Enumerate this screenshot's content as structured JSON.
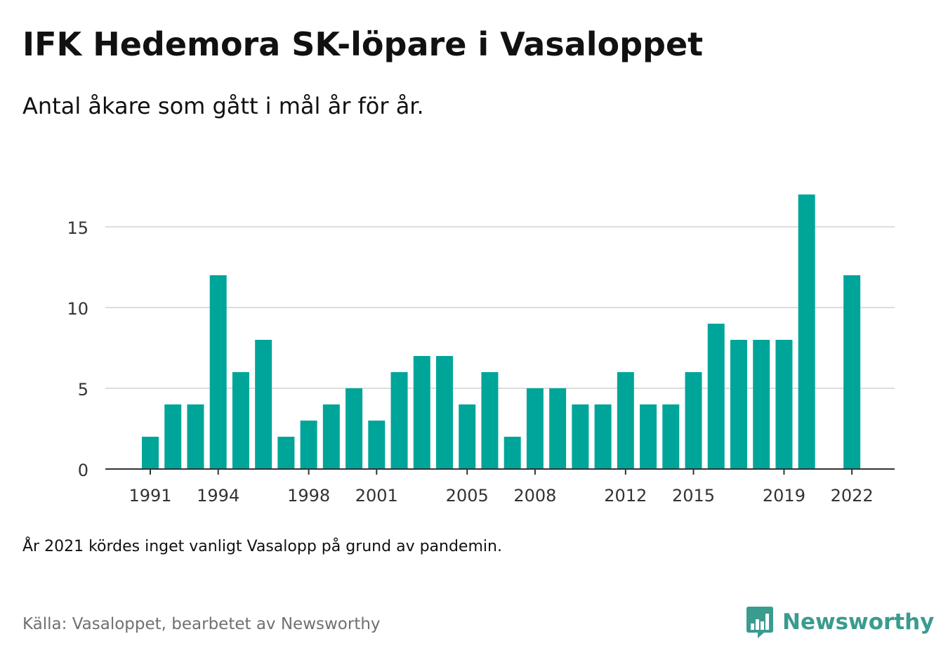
{
  "header": {
    "title": "IFK Hedemora SK-löpare i Vasaloppet",
    "subtitle": "Antal åkare som gått i mål år för år."
  },
  "footer": {
    "note": "År 2021 kördes inget vanligt Vasalopp på grund av pandemin.",
    "source": "Källa: Vasaloppet, bearbetet av Newsworthy",
    "brand": "Newsworthy"
  },
  "colors": {
    "bar": "#00a59a",
    "brand": "#3a9b8f",
    "grid": "#dddddd",
    "axis": "#333333"
  },
  "icons": {
    "brand_logo": "bar-chart-speech-bubble-icon"
  },
  "chart_data": {
    "type": "bar",
    "categories": [
      1991,
      1992,
      1993,
      1994,
      1995,
      1996,
      1997,
      1998,
      1999,
      2000,
      2001,
      2002,
      2003,
      2004,
      2005,
      2006,
      2007,
      2008,
      2009,
      2010,
      2011,
      2012,
      2013,
      2014,
      2015,
      2016,
      2017,
      2018,
      2019,
      2020,
      2021,
      2022
    ],
    "values": [
      2,
      4,
      4,
      12,
      6,
      8,
      2,
      3,
      4,
      5,
      3,
      6,
      7,
      7,
      4,
      6,
      2,
      5,
      5,
      4,
      4,
      6,
      4,
      4,
      6,
      9,
      8,
      8,
      8,
      17,
      null,
      12
    ],
    "x_tick_labels": [
      "1991",
      "1994",
      "1998",
      "2001",
      "2005",
      "2008",
      "2012",
      "2015",
      "2019",
      "2022"
    ],
    "y_ticks": [
      0,
      5,
      10,
      15
    ],
    "ylim": [
      0,
      17
    ],
    "grid": true,
    "title": "IFK Hedemora SK-löpare i Vasaloppet",
    "subtitle": "Antal åkare som gått i mål år för år.",
    "xlabel": "",
    "ylabel": ""
  }
}
